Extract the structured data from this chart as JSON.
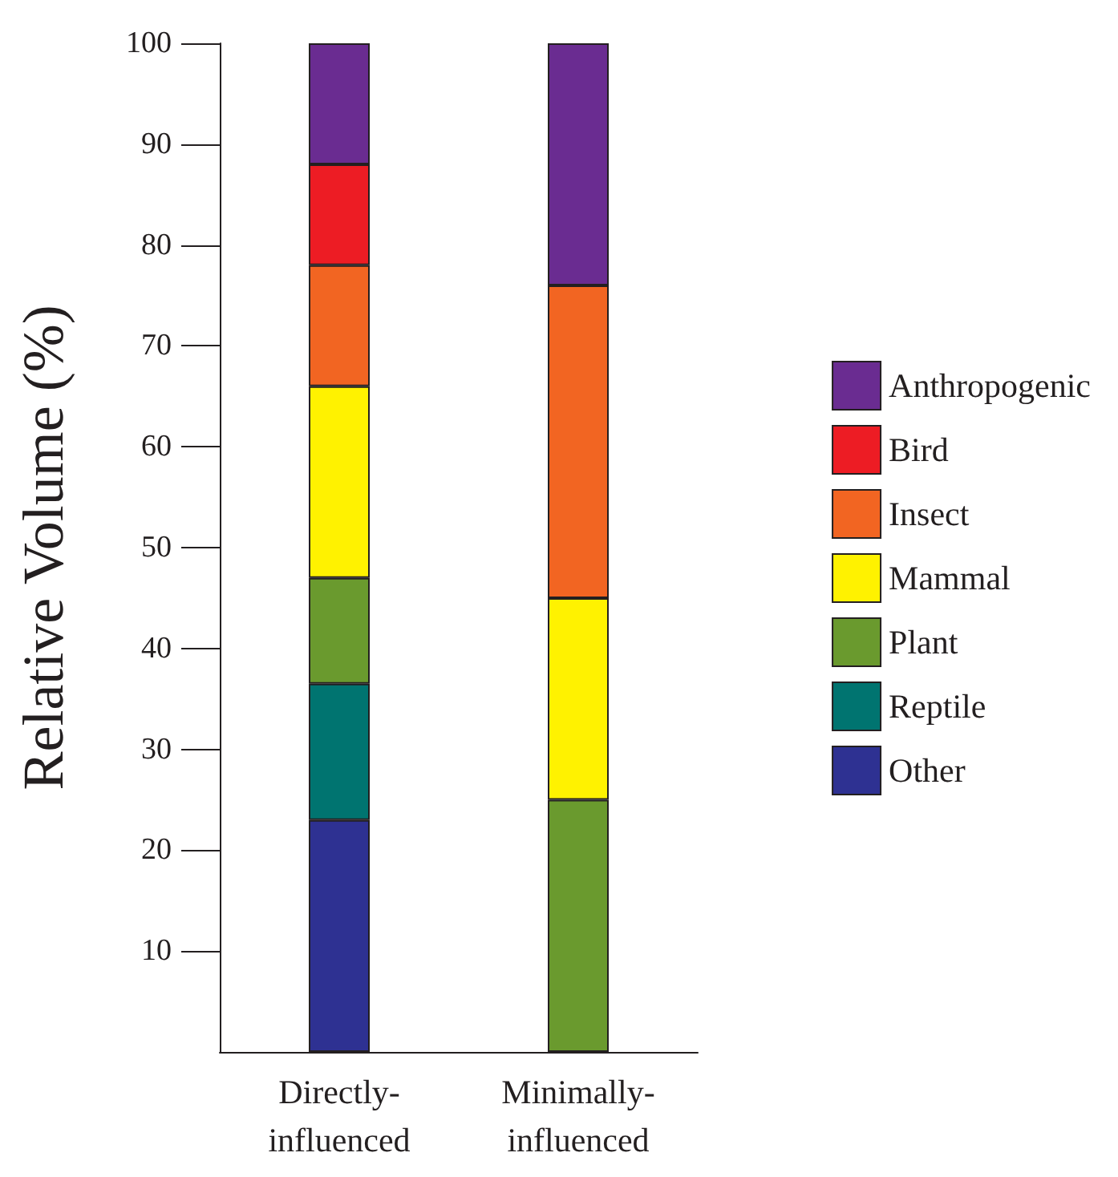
{
  "chart_data": {
    "type": "bar",
    "stacked": true,
    "ylabel": "Relative Volume (%)",
    "categories": [
      "Directly-influenced",
      "Minimally-influenced"
    ],
    "series": [
      {
        "name": "Other",
        "color": "#2e3192",
        "values": [
          23,
          0
        ]
      },
      {
        "name": "Reptile",
        "color": "#007470",
        "values": [
          13.5,
          0
        ]
      },
      {
        "name": "Plant",
        "color": "#6a9a2e",
        "values": [
          10.5,
          25
        ]
      },
      {
        "name": "Mammal",
        "color": "#fff200",
        "values": [
          19,
          20
        ]
      },
      {
        "name": "Insect",
        "color": "#f26522",
        "values": [
          12,
          31
        ]
      },
      {
        "name": "Bird",
        "color": "#ed1c24",
        "values": [
          10,
          0
        ]
      },
      {
        "name": "Anthropogenic",
        "color": "#6a2c91",
        "values": [
          12,
          24
        ]
      }
    ],
    "ylim": [
      0,
      100
    ],
    "yticks": [
      10,
      20,
      30,
      40,
      50,
      60,
      70,
      80,
      90,
      100
    ],
    "grid": false,
    "legend": "right"
  }
}
